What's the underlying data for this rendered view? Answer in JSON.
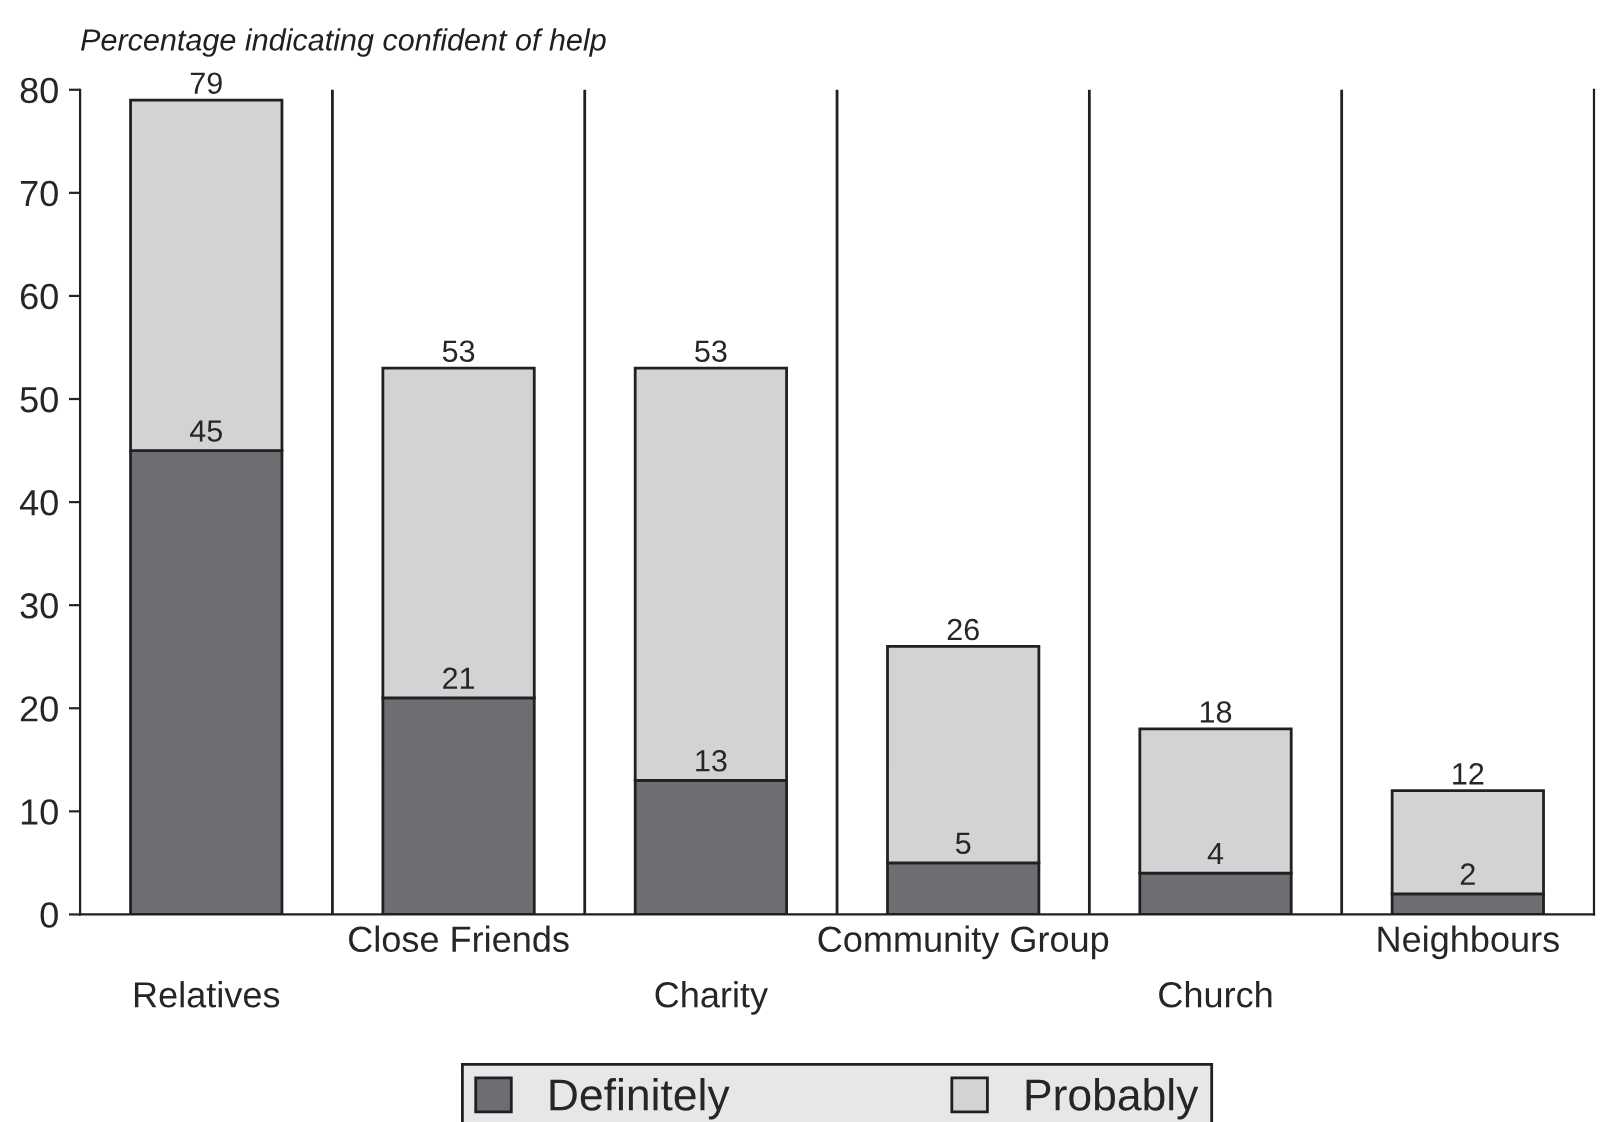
{
  "chart_data": {
    "type": "bar",
    "title": "Percentage indicating confident of help",
    "categories": [
      "Relatives",
      "Close Friends",
      "Charity",
      "Community Group",
      "Church",
      "Neighbours"
    ],
    "stacked": true,
    "series": [
      {
        "name": "Definitely",
        "color": "#6d6e71",
        "values": [
          45,
          21,
          13,
          5,
          4,
          2
        ],
        "value_labels": [
          "45",
          "21",
          "13",
          "5",
          "4",
          "2"
        ]
      },
      {
        "name": "Probably",
        "color": "#d1d3d4",
        "values": [
          34,
          32,
          40,
          21,
          14,
          10
        ]
      }
    ],
    "totals": [
      "79",
      "53",
      "53",
      "26",
      "18",
      "12"
    ],
    "ylim": [
      0,
      80
    ],
    "yticks": [
      0,
      10,
      20,
      30,
      40,
      50,
      60,
      70,
      80
    ],
    "grid": "x",
    "legend": "bottom"
  }
}
